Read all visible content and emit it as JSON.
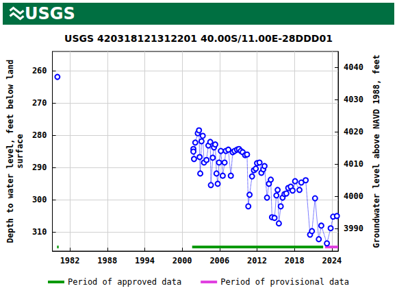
{
  "chart_data": {
    "type": "line",
    "header": "USGS",
    "title": "USGS 420318121312201 40.00S/11.00E-28DDD01",
    "x_label": null,
    "y_label": "Depth to water level, feet below land\nsurface",
    "y2_label": "Groundwater level above NAVD 1988, feet",
    "xlim": [
      1979.2,
      2025.0
    ],
    "xticks": [
      1982,
      1988,
      1994,
      2000,
      2006,
      2012,
      2018,
      2024
    ],
    "ylim": [
      316,
      254
    ],
    "yticks": [
      260,
      270,
      280,
      290,
      300,
      310
    ],
    "y2lim": [
      3983,
      4045
    ],
    "y2ticks": [
      3990,
      4000,
      4010,
      4020,
      4030,
      4040
    ],
    "grid": true,
    "legend": "bottom",
    "series": [
      {
        "name": "Depth to water level",
        "color": "#0000ff",
        "marker": "open_circle",
        "line_style": "dotted",
        "x": [
          1980.0,
          null,
          2001.8,
          2001.8,
          2001.9,
          2002.1,
          2002.5,
          2002.7,
          2002.8,
          2002.9,
          2003.1,
          2003.3,
          2003.5,
          2003.9,
          2004.2,
          2004.5,
          2004.6,
          2004.9,
          2005.1,
          2005.3,
          2005.5,
          2005.7,
          2005.9,
          2006.2,
          2006.5,
          2006.8,
          2007.0,
          2007.4,
          2007.8,
          2008.1,
          2008.4,
          2008.8,
          2009.1,
          2009.4,
          2009.7,
          2010.1,
          2010.4,
          2010.6,
          2010.8,
          2011.2,
          2011.5,
          2011.8,
          2012.0,
          2012.4,
          2012.7,
          2013.0,
          2013.2,
          2013.6,
          2013.9,
          2014.2,
          2014.4,
          2014.8,
          2015.1,
          2015.3,
          2015.5,
          2015.8,
          2016.1,
          2016.4,
          2016.7,
          2017.0,
          2017.4,
          2017.7,
          2018.1,
          2018.8,
          2019.1,
          2019.8,
          2020.5,
          2020.8,
          2021.3,
          2021.9,
          2022.3,
          2023.2,
          2023.8,
          2024.2,
          2024.8
        ],
        "values": [
          261.9,
          null,
          284.3,
          285.1,
          287.4,
          282.3,
          279.4,
          278.5,
          286.8,
          291.9,
          281.9,
          280.2,
          288.5,
          287.7,
          283.2,
          282.1,
          295.5,
          287.0,
          283.8,
          282.9,
          291.9,
          295.1,
          288.5,
          284.9,
          292.6,
          288.5,
          284.9,
          284.5,
          292.6,
          285.3,
          284.9,
          284.5,
          284.3,
          284.9,
          285.3,
          286.2,
          286.0,
          302.1,
          298.5,
          292.8,
          290.9,
          290.4,
          288.7,
          288.5,
          291.7,
          290.6,
          289.6,
          299.4,
          295.1,
          293.8,
          305.5,
          305.7,
          298.7,
          297.0,
          307.4,
          302.1,
          299.4,
          298.3,
          298.1,
          296.4,
          296.0,
          297.2,
          294.3,
          297.0,
          294.7,
          294.0,
          310.9,
          309.8,
          299.6,
          312.3,
          308.1,
          313.6,
          308.9,
          305.3,
          305.1
        ]
      }
    ],
    "periods": [
      {
        "name": "Period of approved data",
        "color": "#0a9a0a",
        "ranges": [
          [
            1979.95,
            1980.2
          ],
          [
            2001.6,
            2022.6
          ]
        ]
      },
      {
        "name": "Period of provisional data",
        "color": "#e040e0",
        "ranges": [
          [
            2022.9,
            2025.0
          ]
        ]
      }
    ]
  }
}
